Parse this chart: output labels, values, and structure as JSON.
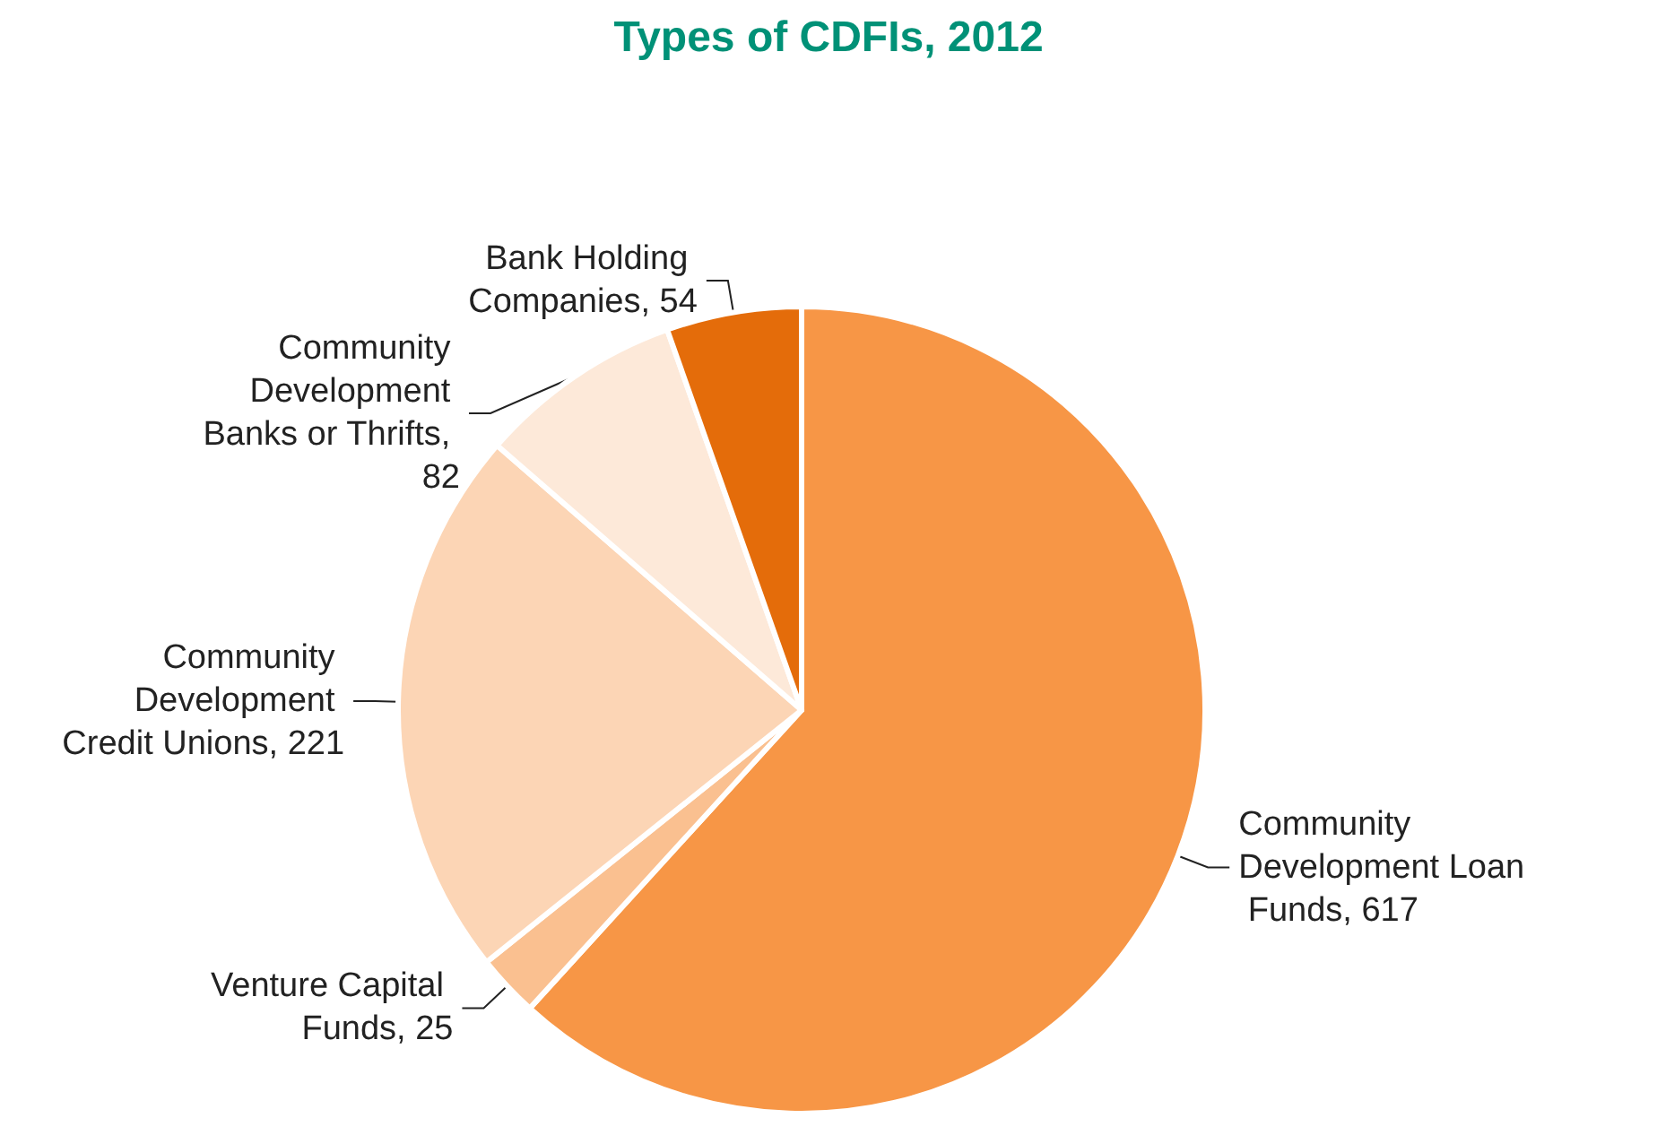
{
  "chart_data": {
    "type": "pie",
    "title": "Types of CDFIs, 2012",
    "categories": [
      "Community Development Loan Funds, 617",
      "Venture Capital Funds, 25",
      "Community Development Credit Unions, 221",
      "Community Development Banks or Thrifts, 82",
      "Bank Holding Companies, 54"
    ],
    "values": [
      617,
      25,
      221,
      82,
      54
    ],
    "colors": [
      "#f79646",
      "#fac090",
      "#fcd5b5",
      "#fde9d9",
      "#e46c0a"
    ]
  }
}
